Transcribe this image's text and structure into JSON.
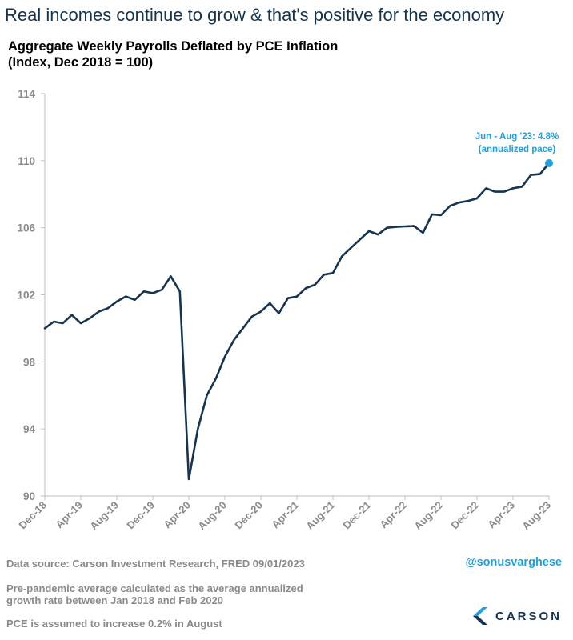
{
  "headline": "Real incomes continue to grow & that's positive for the economy",
  "colors": {
    "line": "#16344f",
    "accent": "#1fa0e0",
    "axis_text": "#8a8a8a",
    "headline": "#16344f"
  },
  "chart_data": {
    "type": "line",
    "title": "Aggregate Weekly Payrolls Deflated by PCE Inflation",
    "subtitle": "(Index, Dec 2018 = 100)",
    "xlabel": "",
    "ylabel": "",
    "ylim": [
      90,
      114
    ],
    "yticks": [
      90,
      94,
      98,
      102,
      106,
      110,
      114
    ],
    "grid": false,
    "x_tick_labels": [
      "Dec-18",
      "Apr-19",
      "Aug-19",
      "Dec-19",
      "Apr-20",
      "Aug-20",
      "Dec-20",
      "Apr-21",
      "Aug-21",
      "Dec-21",
      "Apr-22",
      "Aug-22",
      "Dec-22",
      "Apr-23",
      "Aug-23"
    ],
    "x": [
      "Dec-18",
      "Jan-19",
      "Feb-19",
      "Mar-19",
      "Apr-19",
      "May-19",
      "Jun-19",
      "Jul-19",
      "Aug-19",
      "Sep-19",
      "Oct-19",
      "Nov-19",
      "Dec-19",
      "Jan-20",
      "Feb-20",
      "Mar-20",
      "Apr-20",
      "May-20",
      "Jun-20",
      "Jul-20",
      "Aug-20",
      "Sep-20",
      "Oct-20",
      "Nov-20",
      "Dec-20",
      "Jan-21",
      "Feb-21",
      "Mar-21",
      "Apr-21",
      "May-21",
      "Jun-21",
      "Jul-21",
      "Aug-21",
      "Sep-21",
      "Oct-21",
      "Nov-21",
      "Dec-21",
      "Jan-22",
      "Feb-22",
      "Mar-22",
      "Apr-22",
      "May-22",
      "Jun-22",
      "Jul-22",
      "Aug-22",
      "Sep-22",
      "Oct-22",
      "Nov-22",
      "Dec-22",
      "Jan-23",
      "Feb-23",
      "Mar-23",
      "Apr-23",
      "May-23",
      "Jun-23",
      "Jul-23",
      "Aug-23"
    ],
    "series": [
      {
        "values": [
          100.0,
          100.4,
          100.3,
          100.8,
          100.3,
          100.6,
          101.0,
          101.2,
          101.6,
          101.9,
          101.7,
          102.2,
          102.1,
          102.3,
          103.1,
          102.2,
          91.0,
          94.0,
          96.0,
          97.0,
          98.3,
          99.3,
          100.0,
          100.7,
          101.0,
          101.5,
          100.9,
          101.8,
          101.9,
          102.4,
          102.6,
          103.2,
          103.3,
          104.3,
          104.8,
          105.3,
          105.8,
          105.6,
          106.0,
          106.05,
          106.08,
          106.1,
          105.7,
          106.8,
          106.75,
          107.3,
          107.5,
          107.6,
          107.75,
          108.35,
          108.15,
          108.15,
          108.35,
          108.45,
          109.15,
          109.2,
          109.85
        ]
      }
    ],
    "annotation": {
      "line1": "Jun - Aug '23: 4.8%",
      "line2": "(annualized pace)",
      "x": "Aug-23",
      "y": 109.85
    }
  },
  "footer": {
    "source": "Data source: Carson Investment Research, FRED   09/01/2023",
    "handle": "@sonusvarghese",
    "note_line1": "Pre-pandemic average calculated as the average annualized",
    "note_line2": "growth rate between Jan 2018 and Feb 2020",
    "note2": "PCE is assumed to increase 0.2% in August",
    "logo_text": "CARSON"
  }
}
